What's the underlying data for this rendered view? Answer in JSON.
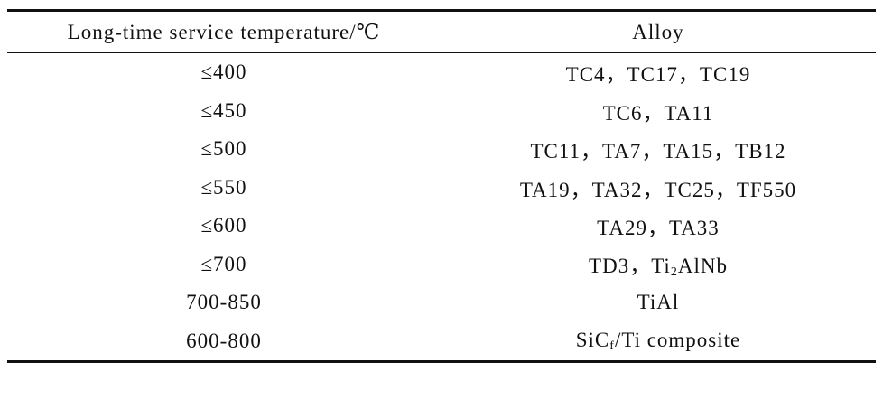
{
  "table": {
    "header": [
      "Long-time service temperature/℃",
      "Alloy"
    ],
    "rows": [
      [
        "≤400",
        "TC4，TC17，TC19"
      ],
      [
        "≤450",
        "TC6，TA11"
      ],
      [
        "≤500",
        "TC11，TA7，TA15，TB12"
      ],
      [
        "≤550",
        "TA19，TA32，TC25，TF550"
      ],
      [
        "≤600",
        "TA29，TA33"
      ],
      [
        "≤700",
        [
          {
            "text": "TD3，Ti"
          },
          {
            "sub": "2"
          },
          {
            "text": "AlNb"
          }
        ]
      ],
      [
        "700-850",
        "TiAl"
      ],
      [
        "600-800",
        [
          {
            "text": "SiC"
          },
          {
            "sub": "f"
          },
          {
            "text": "/Ti composite"
          }
        ]
      ]
    ]
  }
}
